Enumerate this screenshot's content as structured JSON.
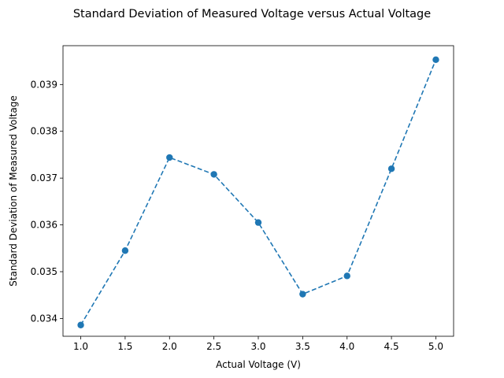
{
  "chart_data": {
    "type": "line",
    "title": "Standard Deviation of Measured Voltage versus Actual Voltage",
    "xlabel": "Actual Voltage (V)",
    "ylabel": "Standard Deviation of Measured Voltage",
    "xlim": [
      0.8,
      5.2
    ],
    "ylim": [
      0.03362,
      0.03983
    ],
    "xticks": [
      1.0,
      1.5,
      2.0,
      2.5,
      3.0,
      3.5,
      4.0,
      4.5,
      5.0
    ],
    "xtick_labels": [
      "1.0",
      "1.5",
      "2.0",
      "2.5",
      "3.0",
      "3.5",
      "4.0",
      "4.5",
      "5.0"
    ],
    "yticks": [
      0.034,
      0.035,
      0.036,
      0.037,
      0.038,
      0.039
    ],
    "ytick_labels": [
      "0.034",
      "0.035",
      "0.036",
      "0.037",
      "0.038",
      "0.039"
    ],
    "grid": false,
    "series": [
      {
        "line_style": "dashed",
        "marker": "circle",
        "color": "#1f77b4",
        "x": [
          1.0,
          1.5,
          2.0,
          2.5,
          3.0,
          3.5,
          4.0,
          4.5,
          5.0
        ],
        "y": [
          0.03386,
          0.03545,
          0.03744,
          0.03708,
          0.03605,
          0.03452,
          0.03491,
          0.0372,
          0.03953
        ]
      }
    ]
  }
}
